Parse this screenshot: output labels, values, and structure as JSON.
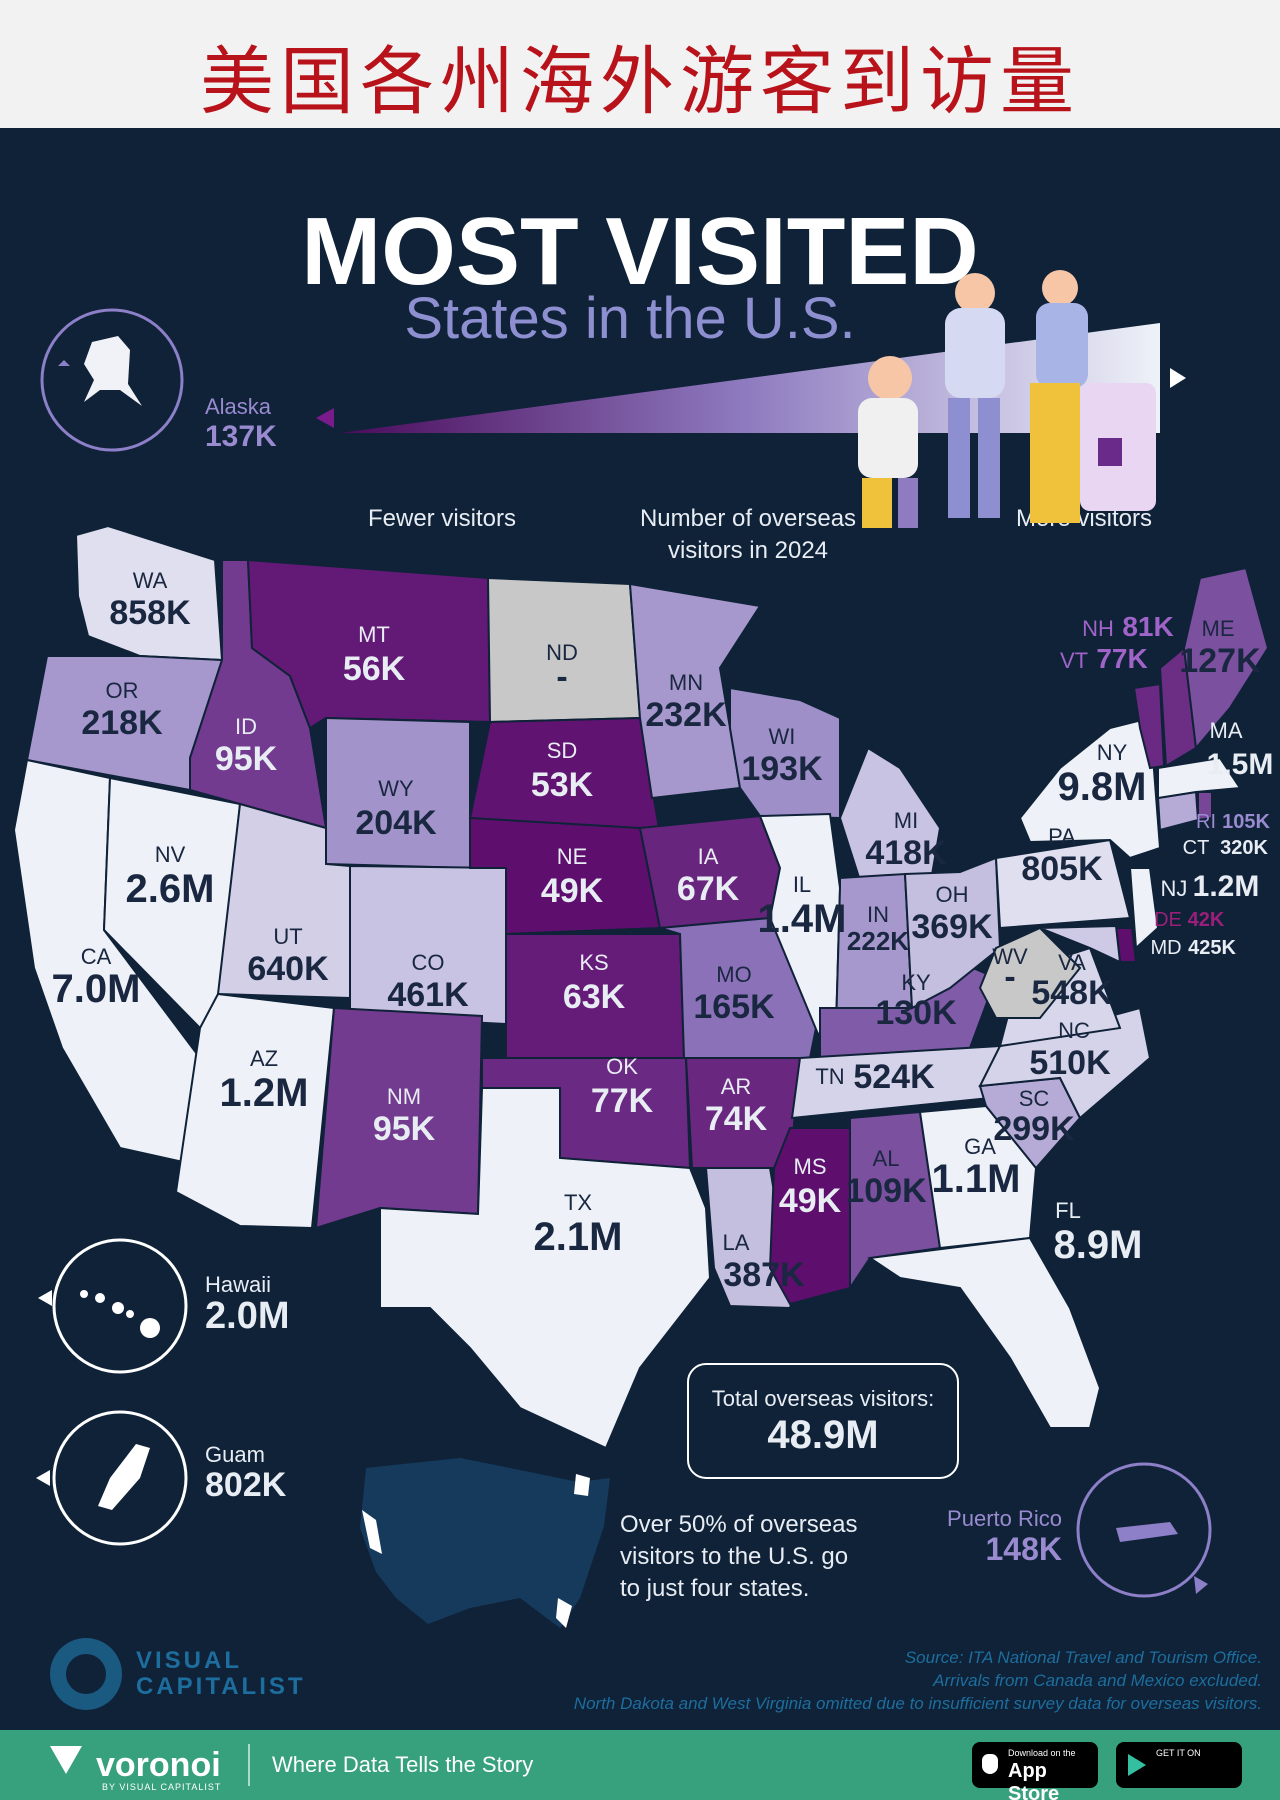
{
  "header": {
    "cn_title": "美国各州海外游客到访量"
  },
  "title": {
    "line1": "MOST VISITED",
    "line2": "States in the U.S."
  },
  "legend": {
    "low_label": "Fewer visitors",
    "mid_line1": "Number of overseas",
    "mid_line2": "visitors in 2024",
    "high_label": "More visitors"
  },
  "colors": {
    "background": "#0f2238",
    "low": "#5e0f6e",
    "mid": "#8f7cc0",
    "high": "#eef2f8",
    "no_data": "#c8c8c8"
  },
  "states": {
    "WA": "858K",
    "OR": "218K",
    "CA": "7.0M",
    "NV": "2.6M",
    "ID": "95K",
    "MT": "56K",
    "WY": "204K",
    "UT": "640K",
    "AZ": "1.2M",
    "CO": "461K",
    "NM": "95K",
    "ND": "-",
    "SD": "53K",
    "NE": "49K",
    "KS": "63K",
    "OK": "77K",
    "TX": "2.1M",
    "MN": "232K",
    "IA": "67K",
    "MO": "165K",
    "AR": "74K",
    "LA": "387K",
    "WI": "193K",
    "IL": "1.4M",
    "MS": "49K",
    "MI": "418K",
    "IN": "222K",
    "KY": "130K",
    "TN": "524K",
    "AL": "109K",
    "OH": "369K",
    "GA": "1.1M",
    "FL": "8.9M",
    "SC": "299K",
    "NC": "510K",
    "VA": "548K",
    "WV": "-",
    "PA": "805K",
    "NY": "9.8M",
    "NJ": "1.2M",
    "DE": "42K",
    "MD": "425K",
    "CT": "320K",
    "RI": "105K",
    "MA": "1.5M",
    "VT": "77K",
    "NH": "81K",
    "ME": "127K"
  },
  "state_fill_level": {
    "WA": 0.92,
    "OR": 0.62,
    "CA": 1.0,
    "NV": 1.0,
    "ID": 0.2,
    "MT": 0.05,
    "WY": 0.6,
    "UT": 0.85,
    "AZ": 1.0,
    "CO": 0.8,
    "NM": 0.2,
    "SD": 0.02,
    "NE": 0.0,
    "KS": 0.06,
    "OK": 0.12,
    "TX": 1.0,
    "MN": 0.62,
    "IA": 0.1,
    "MO": 0.45,
    "AR": 0.11,
    "LA": 0.78,
    "WI": 0.58,
    "IL": 1.0,
    "MS": 0.0,
    "MI": 0.8,
    "IN": 0.62,
    "KY": 0.35,
    "TN": 0.87,
    "AL": 0.3,
    "OH": 0.78,
    "GA": 1.0,
    "FL": 1.0,
    "SC": 0.7,
    "NC": 0.87,
    "VA": 0.88,
    "PA": 0.92,
    "NY": 1.0,
    "NJ": 1.0,
    "DE": 0.0,
    "MD": 0.83,
    "CT": 0.7,
    "RI": 0.25,
    "MA": 1.0,
    "VT": 0.12,
    "NH": 0.14,
    "ME": 0.3
  },
  "insets": {
    "alaska": {
      "name": "Alaska",
      "value": "137K"
    },
    "hawaii": {
      "name": "Hawaii",
      "value": "2.0M"
    },
    "guam": {
      "name": "Guam",
      "value": "802K"
    },
    "puerto_rico": {
      "name": "Puerto Rico",
      "value": "148K"
    }
  },
  "total": {
    "label": "Total overseas visitors:",
    "value": "48.9M"
  },
  "note": {
    "line1": "Over 50% of overseas",
    "line2": "visitors to the U.S. go",
    "line3": "to just four states."
  },
  "source": {
    "line1": "Source: ITA National Travel and Tourism Office.",
    "line2": "Arrivals from Canada and Mexico excluded.",
    "line3": "North Dakota and West Virginia omitted due to insufficient survey data for overseas visitors."
  },
  "logo": {
    "line1": "VISUAL",
    "line2": "CAPITALIST"
  },
  "footer": {
    "brand": "voronoi",
    "by": "BY VISUAL CAPITALIST",
    "tagline": "Where Data Tells the Story",
    "appstore_small": "Download on the",
    "appstore_big": "App Store",
    "gplay_small": "GET IT ON"
  }
}
